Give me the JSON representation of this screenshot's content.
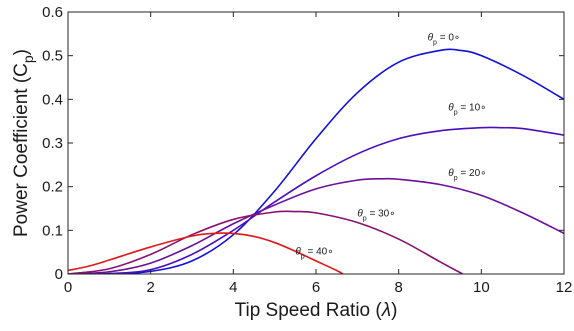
{
  "chart_data": {
    "type": "line",
    "title": "",
    "xlabel_main": "Tip Speed Ratio (",
    "xlabel_symbol": "λ",
    "xlabel_close": ")",
    "ylabel_main": "Power Coefficient (C",
    "ylabel_sub": "p",
    "ylabel_close": ")",
    "xlim": [
      0,
      12
    ],
    "ylim": [
      0,
      0.6
    ],
    "xticks": [
      0,
      2,
      4,
      6,
      8,
      10,
      12
    ],
    "yticks": [
      0,
      0.1,
      0.2,
      0.3,
      0.4,
      0.5,
      0.6
    ],
    "xtick_labels": [
      "0",
      "2",
      "4",
      "6",
      "8",
      "10",
      "12"
    ],
    "ytick_labels": [
      "0",
      "0.1",
      "0.2",
      "0.3",
      "0.4",
      "0.5",
      "0.6"
    ],
    "grid": false,
    "series": [
      {
        "label_theta": "θ",
        "label_sub": "p",
        "label_rest": " = 0∘",
        "color": "#1010d8",
        "x": [
          0,
          1,
          2,
          3,
          4,
          5,
          6,
          7,
          8,
          9,
          9.5,
          10,
          11,
          12
        ],
        "y": [
          0,
          0.0,
          0.006,
          0.03,
          0.09,
          0.19,
          0.31,
          0.415,
          0.485,
          0.512,
          0.512,
          0.5,
          0.455,
          0.4
        ]
      },
      {
        "label_theta": "θ",
        "label_sub": "p",
        "label_rest": " = 10∘",
        "color": "#4a10c0",
        "x": [
          0,
          1,
          2,
          3,
          4,
          5,
          6,
          7,
          8,
          9,
          10,
          10.5,
          11,
          12
        ],
        "y": [
          0,
          0.001,
          0.01,
          0.045,
          0.1,
          0.165,
          0.225,
          0.275,
          0.31,
          0.328,
          0.335,
          0.335,
          0.333,
          0.318
        ]
      },
      {
        "label_theta": "θ",
        "label_sub": "p",
        "label_rest": " = 20∘",
        "color": "#6a109a",
        "x": [
          0,
          1,
          2,
          3,
          4,
          5,
          6,
          7,
          7.6,
          8,
          9,
          10,
          11,
          12
        ],
        "y": [
          0,
          0.005,
          0.025,
          0.065,
          0.115,
          0.158,
          0.195,
          0.215,
          0.218,
          0.217,
          0.205,
          0.18,
          0.14,
          0.093
        ]
      },
      {
        "label_theta": "θ",
        "label_sub": "p",
        "label_rest": " = 30∘",
        "color": "#8a1070",
        "x": [
          0,
          1,
          2,
          3,
          4,
          5,
          5.5,
          6,
          7,
          8,
          9,
          9.55
        ],
        "y": [
          0,
          0.012,
          0.045,
          0.09,
          0.125,
          0.142,
          0.143,
          0.14,
          0.118,
          0.08,
          0.028,
          0
        ]
      },
      {
        "label_theta": "θ",
        "label_sub": "p",
        "label_rest": " = 40∘",
        "color": "#e01818",
        "x": [
          0,
          0.5,
          1,
          2,
          3,
          3.5,
          4,
          4.5,
          5,
          5.5,
          6,
          6.5,
          6.65
        ],
        "y": [
          0.008,
          0.018,
          0.032,
          0.062,
          0.087,
          0.093,
          0.093,
          0.086,
          0.072,
          0.052,
          0.03,
          0.008,
          0
        ]
      }
    ]
  }
}
